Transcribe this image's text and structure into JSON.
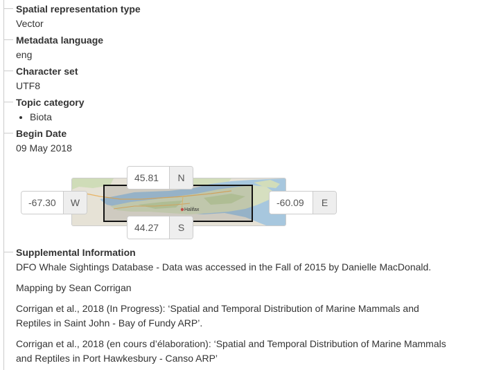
{
  "fields": {
    "spatial_representation": {
      "label": "Spatial representation type",
      "value": "Vector"
    },
    "metadata_language": {
      "label": "Metadata language",
      "value": "eng"
    },
    "character_set": {
      "label": "Character set",
      "value": "UTF8"
    },
    "topic_category": {
      "label": "Topic category",
      "items": [
        "Biota"
      ]
    },
    "begin_date": {
      "label": "Begin Date",
      "value": "09 May 2018"
    }
  },
  "extent": {
    "north": {
      "value": "45.81",
      "label": "N"
    },
    "south": {
      "value": "44.27",
      "label": "S"
    },
    "west": {
      "value": "-67.30",
      "label": "W"
    },
    "east": {
      "value": "-60.09",
      "label": "E"
    },
    "map_city_label": "Halifax"
  },
  "supplemental": {
    "label": "Supplemental Information",
    "paragraphs": [
      "DFO Whale Sightings Database - Data was accessed in the Fall of 2015 by Danielle MacDonald.",
      "Mapping by Sean Corrigan",
      "Corrigan et al., 2018 (In Progress): ‘Spatial and Temporal Distribution of Marine Mammals and Reptiles in Saint John - Bay of Fundy ARP’.",
      "Corrigan et al., 2018 (en cours d’élaboration): ‘Spatial and Temporal Distribution of Marine Mammals and Reptiles in Port Hawkesbury - Canso ARP’"
    ]
  }
}
